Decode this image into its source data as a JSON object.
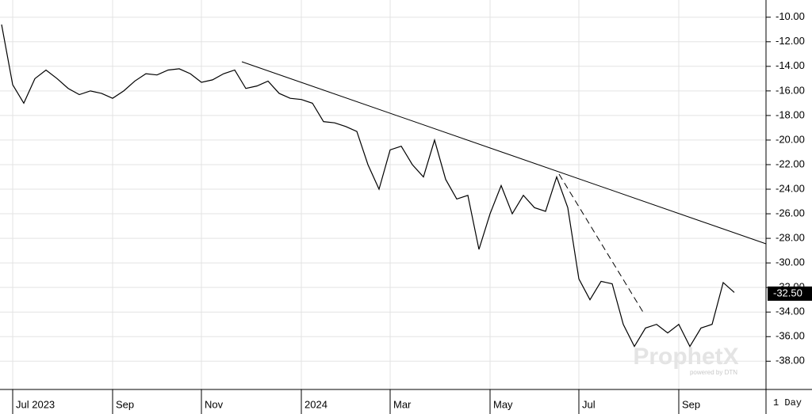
{
  "chart_data": {
    "type": "line",
    "watermark": "ProphetX",
    "watermark_sub": "powered by DTN",
    "interval": "1 Day",
    "categories": [
      null,
      "Jul 2023",
      null,
      null,
      null,
      null,
      null,
      null,
      null,
      null,
      "Sep",
      null,
      null,
      null,
      null,
      null,
      null,
      null,
      "Nov",
      null,
      null,
      null,
      null,
      null,
      null,
      null,
      null,
      "2024",
      null,
      null,
      null,
      null,
      null,
      null,
      null,
      "Mar",
      null,
      null,
      null,
      null,
      null,
      null,
      null,
      null,
      "May",
      null,
      null,
      null,
      null,
      null,
      null,
      null,
      "Jul",
      null,
      null,
      null,
      null,
      null,
      null,
      null,
      null,
      "Sep",
      null,
      null,
      null,
      null,
      null
    ],
    "series": [
      {
        "color": "#000000",
        "values": [
          -10.6,
          -15.5,
          -17.0,
          -15.0,
          -14.3,
          -15.0,
          -15.8,
          -16.3,
          -16.0,
          -16.2,
          -16.6,
          -16.0,
          -15.2,
          -14.6,
          -14.7,
          -14.3,
          -14.2,
          -14.6,
          -15.3,
          -15.1,
          -14.6,
          -14.3,
          -15.8,
          -15.6,
          -15.2,
          -16.2,
          -16.6,
          -16.7,
          -17.0,
          -18.5,
          -18.6,
          -18.9,
          -19.3,
          -22.0,
          -24.0,
          -20.8,
          -20.5,
          -22.0,
          -23.0,
          -20.0,
          -23.2,
          -24.8,
          -24.5,
          -28.9,
          -26.0,
          -23.7,
          -26.0,
          -24.5,
          -25.5,
          -25.8,
          -23.0,
          -25.5,
          -31.3,
          -33.0,
          -31.5,
          -31.7,
          -35.0,
          -36.8,
          -35.3,
          -35.0,
          -35.7,
          -35.0,
          -36.8,
          -35.3,
          -35.0,
          -31.6,
          -32.4
        ]
      }
    ],
    "last_price": {
      "value": -32.5,
      "label": "-32.50"
    },
    "ylim": [
      -40.3,
      -8.6
    ],
    "yticks": [
      {
        "value": -10,
        "label": "-10.00"
      },
      {
        "value": -12,
        "label": "-12.00"
      },
      {
        "value": -14,
        "label": "-14.00"
      },
      {
        "value": -16,
        "label": "-16.00"
      },
      {
        "value": -18,
        "label": "-18.00"
      },
      {
        "value": -20,
        "label": "-20.00"
      },
      {
        "value": -22,
        "label": "-22.00"
      },
      {
        "value": -24,
        "label": "-24.00"
      },
      {
        "value": -26,
        "label": "-26.00"
      },
      {
        "value": -28,
        "label": "-28.00"
      },
      {
        "value": -30,
        "label": "-30.00"
      },
      {
        "value": -32,
        "label": "-32.00"
      },
      {
        "value": -34,
        "label": "-34.00"
      },
      {
        "value": -36,
        "label": "-36.00"
      },
      {
        "value": -38,
        "label": "-38.00"
      }
    ],
    "grid": true
  }
}
